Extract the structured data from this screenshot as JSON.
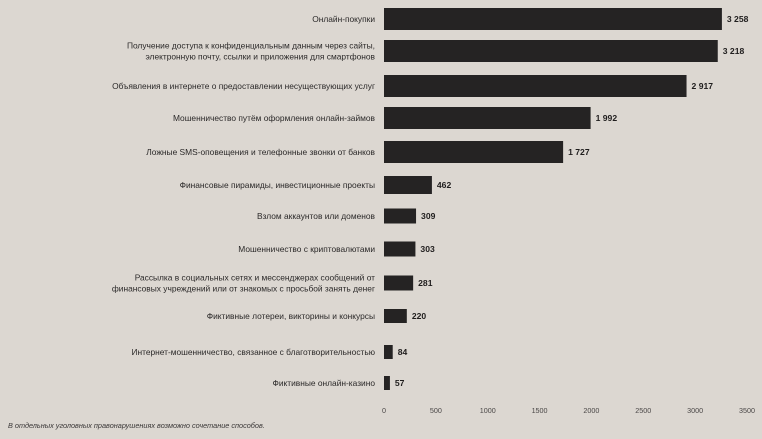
{
  "chart_data": {
    "type": "bar",
    "orientation": "horizontal",
    "categories": [
      [
        "Онлайн-покупки"
      ],
      [
        "Получение доступа к конфиденциальным данным через сайты,",
        "электронную почту, ссылки и приложения для смартфонов"
      ],
      [
        "Объявления в интернете о предоставлении несуществующих услуг"
      ],
      [
        "Мошенничество путём оформления онлайн-займов"
      ],
      [
        "Ложные SMS-оповещения и телефонные звонки от банков"
      ],
      [
        "Финансовые пирамиды, инвестиционные проекты"
      ],
      [
        "Взлом аккаунтов или доменов"
      ],
      [
        "Мошенничество с криптовалютами"
      ],
      [
        "Рассылка в социальных сетях и мессенджерах сообщений от",
        "финансовых учреждений или от знакомых с просьбой занять денег"
      ],
      [
        "Фиктивные лотереи, викторины и конкурсы"
      ],
      [
        "Интернет-мошенничество, связанное с благотворительностью"
      ],
      [
        "Фиктивные онлайн-казино"
      ]
    ],
    "values": [
      3258,
      3218,
      2917,
      1992,
      1727,
      462,
      309,
      303,
      281,
      220,
      84,
      57
    ],
    "value_labels": [
      "3 258",
      "3 218",
      "2 917",
      "1 992",
      "1 727",
      "462",
      "309",
      "303",
      "281",
      "220",
      "84",
      "57"
    ],
    "xlim": [
      0,
      3500
    ],
    "xticks": [
      0,
      500,
      1000,
      1500,
      2000,
      2500,
      3000,
      3500
    ],
    "grid": false,
    "bar_color": "#252323",
    "footnote": "В отдельных уголовных правонарушениях возможно сочетание способов."
  }
}
